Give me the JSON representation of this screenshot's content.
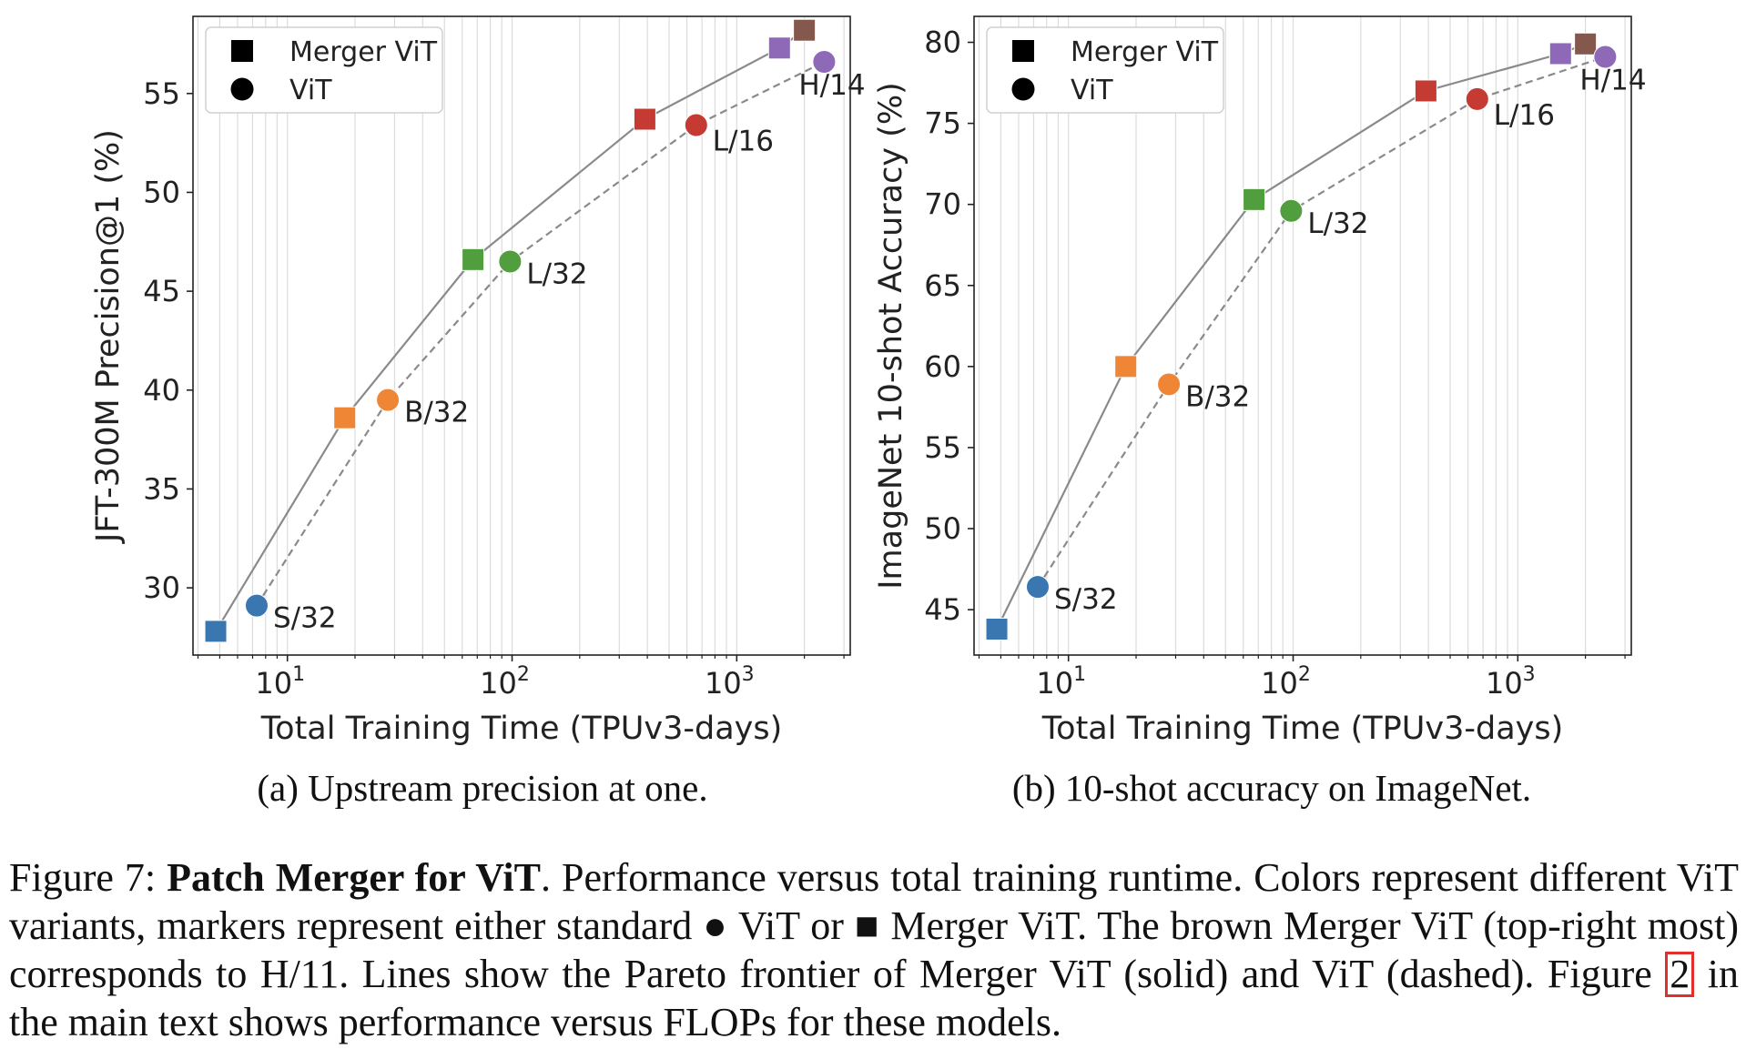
{
  "chart_data": [
    {
      "type": "scatter",
      "subcaption": "(a) Upstream precision at one.",
      "xlabel": "Total Training Time (TPUv3-days)",
      "ylabel": "JFT-300M Precision@1 (%)",
      "xscale": "log",
      "xlim": [
        3.8,
        3200
      ],
      "ylim": [
        26.6,
        58.9
      ],
      "xticks": [
        {
          "value": 10,
          "base": "10",
          "exp": "1"
        },
        {
          "value": 100,
          "base": "10",
          "exp": "2"
        },
        {
          "value": 1000,
          "base": "10",
          "exp": "3"
        }
      ],
      "yticks": [
        30,
        35,
        40,
        45,
        50,
        55
      ],
      "grid": "vertical minor",
      "legend": {
        "position": "top-left",
        "entries": [
          {
            "label": "Merger ViT",
            "marker": "square"
          },
          {
            "label": "ViT",
            "marker": "circle"
          }
        ]
      },
      "series": [
        {
          "name": "Merger ViT",
          "marker": "square",
          "line": "solid",
          "points": [
            {
              "x": 4.8,
              "y": 27.8,
              "variant": "S/32",
              "color": "#3a76af"
            },
            {
              "x": 18,
              "y": 38.6,
              "variant": "B/32",
              "color": "#ef8636"
            },
            {
              "x": 67,
              "y": 46.6,
              "variant": "L/32",
              "color": "#519e3e"
            },
            {
              "x": 390,
              "y": 53.7,
              "variant": "L/16",
              "color": "#c53a32"
            },
            {
              "x": 1550,
              "y": 57.3,
              "variant": "H/14",
              "color": "#8d69b8"
            },
            {
              "x": 2000,
              "y": 58.2,
              "variant": "H/11",
              "color": "#85584e"
            }
          ]
        },
        {
          "name": "ViT",
          "marker": "circle",
          "line": "dashed",
          "points": [
            {
              "x": 7.3,
              "y": 29.1,
              "variant": "S/32",
              "color": "#3a76af",
              "label": "S/32"
            },
            {
              "x": 28,
              "y": 39.5,
              "variant": "B/32",
              "color": "#ef8636",
              "label": "B/32"
            },
            {
              "x": 98,
              "y": 46.5,
              "variant": "L/32",
              "color": "#519e3e",
              "label": "L/32"
            },
            {
              "x": 660,
              "y": 53.4,
              "variant": "L/16",
              "color": "#c53a32",
              "label": "L/16"
            },
            {
              "x": 2450,
              "y": 56.6,
              "variant": "H/14",
              "color": "#8d69b8",
              "label": "H/14"
            }
          ]
        }
      ]
    },
    {
      "type": "scatter",
      "subcaption": "(b) 10-shot accuracy on ImageNet.",
      "xlabel": "Total Training Time (TPUv3-days)",
      "ylabel": "ImageNet 10-shot Accuracy (%)",
      "xscale": "log",
      "xlim": [
        3.8,
        3200
      ],
      "ylim": [
        42.2,
        81.6
      ],
      "xticks": [
        {
          "value": 10,
          "base": "10",
          "exp": "1"
        },
        {
          "value": 100,
          "base": "10",
          "exp": "2"
        },
        {
          "value": 1000,
          "base": "10",
          "exp": "3"
        }
      ],
      "yticks": [
        45,
        50,
        55,
        60,
        65,
        70,
        75,
        80
      ],
      "grid": "vertical minor",
      "legend": {
        "position": "top-left",
        "entries": [
          {
            "label": "Merger ViT",
            "marker": "square"
          },
          {
            "label": "ViT",
            "marker": "circle"
          }
        ]
      },
      "series": [
        {
          "name": "Merger ViT",
          "marker": "square",
          "line": "solid",
          "points": [
            {
              "x": 4.8,
              "y": 43.8,
              "variant": "S/32",
              "color": "#3a76af"
            },
            {
              "x": 18,
              "y": 60.0,
              "variant": "B/32",
              "color": "#ef8636"
            },
            {
              "x": 67,
              "y": 70.3,
              "variant": "L/32",
              "color": "#519e3e"
            },
            {
              "x": 390,
              "y": 77.0,
              "variant": "L/16",
              "color": "#c53a32"
            },
            {
              "x": 1550,
              "y": 79.3,
              "variant": "H/14",
              "color": "#8d69b8"
            },
            {
              "x": 2000,
              "y": 79.9,
              "variant": "H/11",
              "color": "#85584e"
            }
          ]
        },
        {
          "name": "ViT",
          "marker": "circle",
          "line": "dashed",
          "points": [
            {
              "x": 7.3,
              "y": 46.4,
              "variant": "S/32",
              "color": "#3a76af",
              "label": "S/32"
            },
            {
              "x": 28,
              "y": 58.9,
              "variant": "B/32",
              "color": "#ef8636",
              "label": "B/32"
            },
            {
              "x": 98,
              "y": 69.6,
              "variant": "L/32",
              "color": "#519e3e",
              "label": "L/32"
            },
            {
              "x": 660,
              "y": 76.5,
              "variant": "L/16",
              "color": "#c53a32",
              "label": "L/16"
            },
            {
              "x": 2450,
              "y": 79.1,
              "variant": "H/14",
              "color": "#8d69b8",
              "label": "H/14"
            }
          ]
        }
      ]
    }
  ],
  "caption": {
    "prefix": "Figure 7: ",
    "bold_title": "Patch Merger for ViT",
    "text_1": ". Performance versus total training runtime. Colors represent different ViT variants, markers represent either standard ",
    "circle_glyph": "●",
    "text_2": " ViT or ",
    "square_glyph": "■",
    "text_3": " Merger ViT. The brown Merger ViT (top-right most) corresponds to H/11. Lines show the Pareto frontier of Merger ViT (solid) and ViT (dashed). Figure ",
    "ref_number": "2",
    "text_4": " in the main text shows performance versus FLOPs for these models."
  },
  "colors": {
    "frontier_line": "#8a8a8a",
    "grid": "#dcdcdc",
    "ref_box": "#e0302a"
  }
}
